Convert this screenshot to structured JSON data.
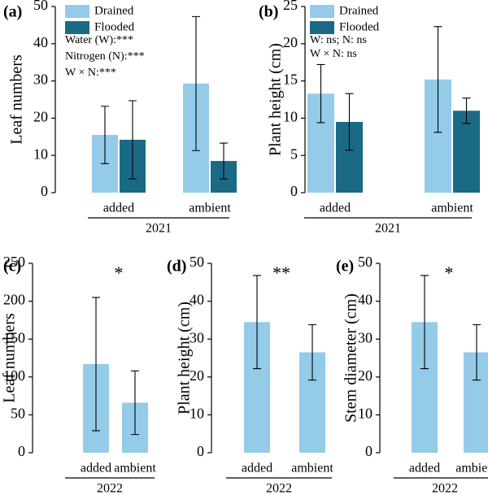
{
  "chart_data": [
    {
      "type": "bar",
      "panel_label": "(a)",
      "ylabel": "Leaf numbers",
      "categories": [
        "added",
        "ambient"
      ],
      "group_label": "2021",
      "series": [
        {
          "name": "Drained",
          "color": "#93cbe9",
          "values": [
            15.5,
            29.3
          ],
          "errors": [
            7.7,
            18
          ]
        },
        {
          "name": "Flooded",
          "color": "#1a6a86",
          "values": [
            14.2,
            8.5
          ],
          "errors": [
            10.5,
            4.8
          ]
        }
      ],
      "annotations": [
        "Water (W):***",
        "Nitrogen (N):***",
        "W × N:***"
      ],
      "ylim": [
        0,
        50
      ],
      "yticks": [
        0,
        10,
        20,
        30,
        40,
        50
      ]
    },
    {
      "type": "bar",
      "panel_label": "(b)",
      "ylabel": "Plant height (cm)",
      "categories": [
        "added",
        "ambient"
      ],
      "group_label": "2021",
      "series": [
        {
          "name": "Drained",
          "color": "#93cbe9",
          "values": [
            13.3,
            15.2
          ],
          "errors": [
            3.9,
            7.1
          ]
        },
        {
          "name": "Flooded",
          "color": "#1a6a86",
          "values": [
            9.5,
            11.0
          ],
          "errors": [
            3.8,
            1.7
          ]
        }
      ],
      "annotations": [
        "W: ns;   N: ns",
        "W × N: ns"
      ],
      "ylim": [
        0,
        25
      ],
      "yticks": [
        0,
        5,
        10,
        15,
        20,
        25
      ]
    },
    {
      "type": "bar",
      "panel_label": "(c)",
      "ylabel": "Leaf numbers",
      "categories": [
        "added",
        "ambient"
      ],
      "group_label": "2022",
      "series": [
        {
          "color": "#93cbe9",
          "values": [
            117,
            66
          ],
          "errors": [
            88,
            42
          ]
        }
      ],
      "annotations": [
        "*"
      ],
      "ylim": [
        0,
        250
      ],
      "yticks": [
        0,
        50,
        100,
        150,
        200,
        250
      ]
    },
    {
      "type": "bar",
      "panel_label": "(d)",
      "ylabel": "Plant height (cm)",
      "categories": [
        "added",
        "ambient"
      ],
      "group_label": "2022",
      "series": [
        {
          "color": "#93cbe9",
          "values": [
            34.5,
            26.5
          ],
          "errors": [
            12.3,
            7.3
          ]
        }
      ],
      "annotations": [
        "**"
      ],
      "ylim": [
        0,
        50
      ],
      "yticks": [
        0,
        10,
        20,
        30,
        40,
        50
      ]
    },
    {
      "type": "bar",
      "panel_label": "(e)",
      "ylabel": "Stem diameter (cm)",
      "categories": [
        "added",
        "ambient"
      ],
      "group_label": "2022",
      "series": [
        {
          "color": "#93cbe9",
          "values": [
            34.5,
            26.5
          ],
          "errors": [
            12.3,
            7.3
          ]
        }
      ],
      "annotations": [
        "*"
      ],
      "ylim": [
        0,
        50
      ],
      "yticks": [
        0,
        10,
        20,
        30,
        40,
        50
      ]
    }
  ]
}
